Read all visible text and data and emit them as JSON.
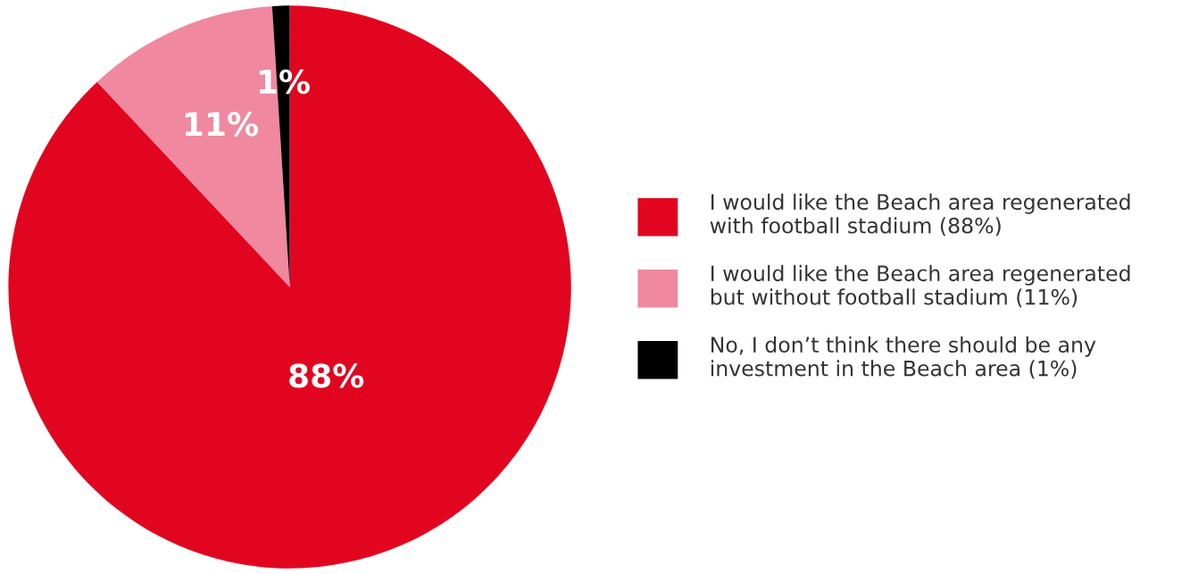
{
  "chart_data": {
    "type": "pie",
    "categories": [
      "I would like the Beach area regenerated\nwith football stadium (88%)",
      "I would like the Beach area regenerated\nbut without football stadium (11%)",
      "No, I don’t think there should be any\ninvestment in the Beach area (1%)"
    ],
    "values": [
      88,
      11,
      1
    ],
    "colors": [
      "#e2051f",
      "#f088a0",
      "#000000"
    ],
    "value_labels": [
      "88%",
      "11%",
      "1%"
    ],
    "legend": "right"
  }
}
